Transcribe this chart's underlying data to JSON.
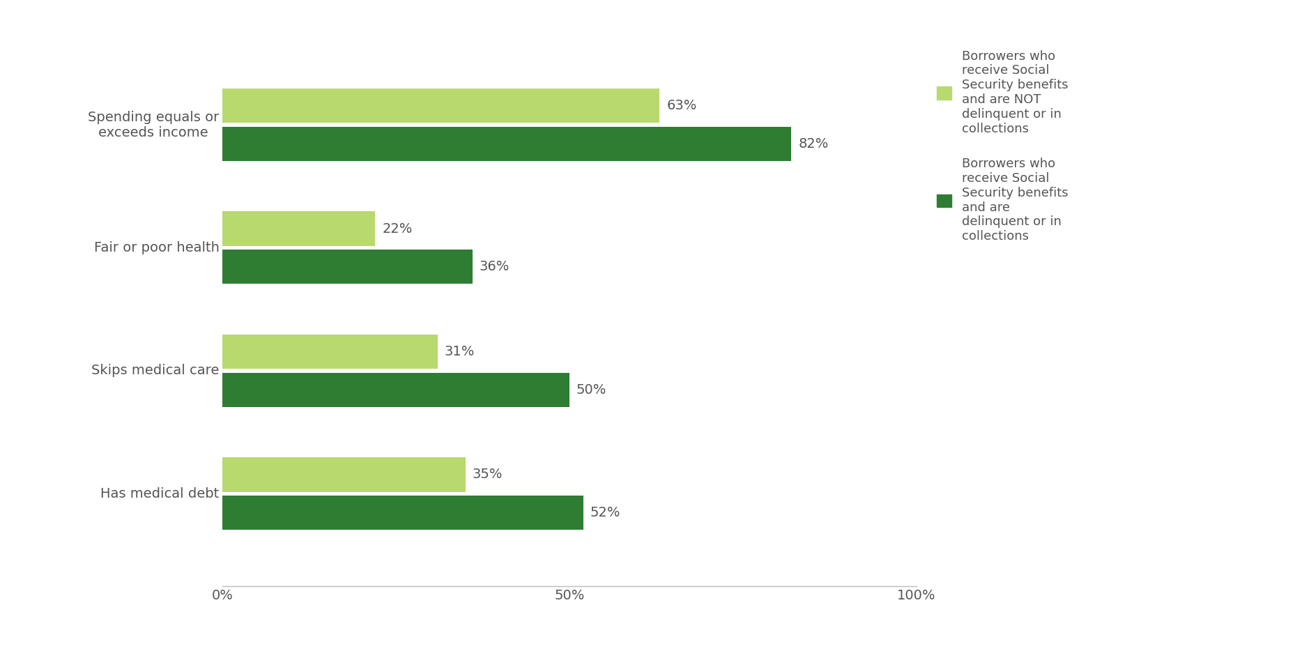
{
  "categories": [
    "Has medical debt",
    "Skips medical care",
    "Fair or poor health",
    "Spending equals or\nexceeds income"
  ],
  "not_delinquent": [
    35,
    31,
    22,
    63
  ],
  "delinquent": [
    52,
    50,
    36,
    82
  ],
  "color_not_delinquent": "#b8d96e",
  "color_delinquent": "#2e7d32",
  "bar_height": 0.28,
  "xlim": [
    0,
    100
  ],
  "xticks": [
    0,
    50,
    100
  ],
  "xticklabels": [
    "0%",
    "50%",
    "100%"
  ],
  "legend_label_not_delinquent": "Borrowers who\nreceive Social\nSecurity benefits\nand are NOT\ndelinquent or in\ncollections",
  "legend_label_delinquent": "Borrowers who\nreceive Social\nSecurity benefits\nand are\ndelinquent or in\ncollections",
  "background_color": "#ffffff",
  "label_fontsize": 14,
  "tick_fontsize": 14,
  "legend_fontsize": 13,
  "value_fontsize": 14,
  "text_color": "#555555"
}
